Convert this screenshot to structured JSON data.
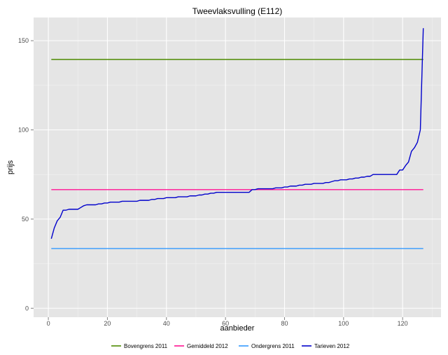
{
  "chart_data": {
    "type": "line",
    "title": "Tweevlaksvulling (E112)",
    "xlabel": "aanbieder",
    "ylabel": "prijs",
    "xlim": [
      -5,
      133
    ],
    "ylim": [
      -5,
      163
    ],
    "xticks": [
      0,
      20,
      40,
      60,
      80,
      100,
      120
    ],
    "yticks": [
      0,
      50,
      100,
      150
    ],
    "grid": true,
    "legend_position": "bottom",
    "series": [
      {
        "name": "Bovengrens 2011",
        "color": "#4d8b00",
        "x": [
          1,
          127
        ],
        "y": [
          139.5,
          139.5
        ]
      },
      {
        "name": "Gemiddeld 2012",
        "color": "#ff1493",
        "x": [
          1,
          127
        ],
        "y": [
          66.5,
          66.5
        ]
      },
      {
        "name": "Ondergrens 2011",
        "color": "#3399ff",
        "x": [
          1,
          127
        ],
        "y": [
          33.5,
          33.5
        ]
      },
      {
        "name": "Tarieven 2012",
        "color": "#0000cc",
        "x": [
          1,
          2,
          3,
          4,
          5,
          6,
          7,
          8,
          9,
          10,
          11,
          12,
          13,
          14,
          15,
          16,
          17,
          18,
          19,
          20,
          21,
          22,
          23,
          24,
          25,
          26,
          27,
          28,
          29,
          30,
          31,
          32,
          33,
          34,
          35,
          36,
          37,
          38,
          39,
          40,
          41,
          42,
          43,
          44,
          45,
          46,
          47,
          48,
          49,
          50,
          51,
          52,
          53,
          54,
          55,
          56,
          57,
          58,
          59,
          60,
          61,
          62,
          63,
          64,
          65,
          66,
          67,
          68,
          69,
          70,
          71,
          72,
          73,
          74,
          75,
          76,
          77,
          78,
          79,
          80,
          81,
          82,
          83,
          84,
          85,
          86,
          87,
          88,
          89,
          90,
          91,
          92,
          93,
          94,
          95,
          96,
          97,
          98,
          99,
          100,
          101,
          102,
          103,
          104,
          105,
          106,
          107,
          108,
          109,
          110,
          111,
          112,
          113,
          114,
          115,
          116,
          117,
          118,
          119,
          120,
          121,
          122,
          123,
          124,
          125,
          126,
          127
        ],
        "y": [
          39,
          45,
          49,
          51,
          55,
          55,
          55.5,
          55.5,
          55.5,
          55.5,
          56.5,
          57.5,
          58,
          58,
          58,
          58,
          58.5,
          58.5,
          59,
          59,
          59.5,
          59.5,
          59.5,
          59.5,
          60,
          60,
          60,
          60,
          60,
          60,
          60.5,
          60.5,
          60.5,
          60.5,
          61,
          61,
          61.5,
          61.5,
          61.5,
          62,
          62,
          62,
          62,
          62.5,
          62.5,
          62.5,
          62.5,
          63,
          63,
          63,
          63.5,
          63.5,
          64,
          64,
          64.5,
          64.5,
          65,
          65,
          65,
          65,
          65,
          65,
          65,
          65,
          65,
          65,
          65,
          65,
          66.5,
          66.5,
          67,
          67,
          67,
          67,
          67,
          67,
          67.5,
          67.5,
          67.5,
          68,
          68,
          68.5,
          68.5,
          68.5,
          69,
          69,
          69.5,
          69.5,
          69.5,
          70,
          70,
          70,
          70,
          70.5,
          70.5,
          71,
          71.5,
          71.5,
          72,
          72,
          72,
          72.5,
          72.5,
          73,
          73,
          73.5,
          73.5,
          74,
          74,
          75,
          75,
          75,
          75,
          75,
          75,
          75,
          75,
          75,
          77.5,
          77.5,
          80,
          82,
          88,
          90,
          93,
          100,
          157
        ]
      }
    ]
  }
}
